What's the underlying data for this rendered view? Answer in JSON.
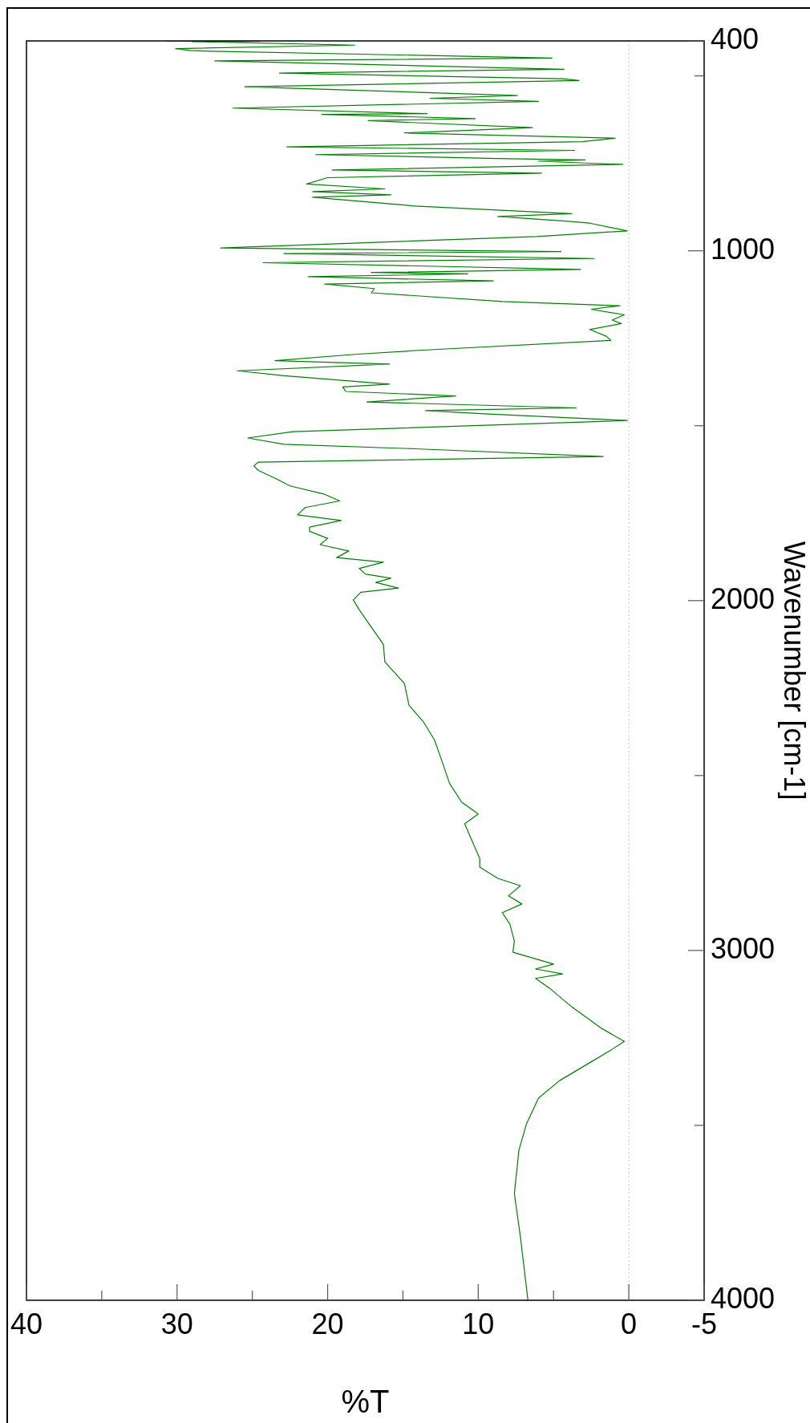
{
  "chart_data": {
    "type": "line",
    "xlabel": "%T",
    "ylabel": "Wavenumber [cm-1]",
    "color": "#008000",
    "xlim": [
      40,
      -5
    ],
    "ylim": [
      4000,
      400
    ],
    "xticks": [
      40,
      {
        "value": 35,
        "label": null
      },
      30,
      {
        "value": 25,
        "label": null
      },
      20,
      {
        "value": 15,
        "label": null
      },
      10,
      {
        "value": 5,
        "label": null
      },
      0,
      -5
    ],
    "yticks": [
      4000,
      {
        "value": 3500,
        "label": null
      },
      3000,
      {
        "value": 2500,
        "label": null
      },
      2000,
      {
        "value": 1500,
        "label": null
      },
      1000,
      {
        "value": 500,
        "label": null
      },
      400
    ],
    "ref_lines": [
      {
        "axis": "x",
        "value": 0,
        "color": "#c0c0c0",
        "line_style": "dotted"
      }
    ],
    "x": [
      6.7,
      7.2,
      7.6,
      7.3,
      6.8,
      6.0,
      4.6,
      2.6,
      1.2,
      0.3,
      1.8,
      3.8,
      5.2,
      6.2,
      4.4,
      6.2,
      5.0,
      7.7,
      7.6,
      7.9,
      8.4,
      7.1,
      8.0,
      7.2,
      8.7,
      9.9,
      9.9,
      10.4,
      10.9,
      10.0,
      11.1,
      11.9,
      12.5,
      12.9,
      13.6,
      14.6,
      14.9,
      16.2,
      16.3,
      17.1,
      17.9,
      18.3,
      17.8,
      15.3,
      16.8,
      15.8,
      17.5,
      17.9,
      16.3,
      19.4,
      18.6,
      20.5,
      20.0,
      21.2,
      21.2,
      19.1,
      22.0,
      21.5,
      19.2,
      20.2,
      22.5,
      23.4,
      24.6,
      24.9,
      24.6,
      1.7,
      14.2,
      22.9,
      25.3,
      22.3,
      0.1,
      9.6,
      13.5,
      3.5,
      17.4,
      11.5,
      18.8,
      19.0,
      15.9,
      22.9,
      26.0,
      15.9,
      23.5,
      18.2,
      13.7,
      1.2,
      1.5,
      2.6,
      0.5,
      1.1,
      0.3,
      2.5,
      0.6,
      8.4,
      17.1,
      16.9,
      20.2,
      9.0,
      21.3,
      10.7,
      17.1,
      3.2,
      24.3,
      2.3,
      22.9,
      4.5,
      27.1,
      6.1,
      0.1,
      2.6,
      4.2,
      8.7,
      3.8,
      14.2,
      21.0,
      15.8,
      21.0,
      16.2,
      21.4,
      20.0,
      5.8,
      19.7,
      0.4,
      6.0,
      2.9,
      8.7,
      20.8,
      3.6,
      22.7,
      3.1,
      0.9,
      14.9,
      6.4,
      17.3,
      10.2,
      20.4,
      13.4,
      26.3,
      6.0,
      13.2,
      7.4,
      25.5,
      3.3,
      4.4,
      23.2,
      4.3,
      27.5,
      5.1,
      29.1,
      30.1,
      18.2,
      29.0,
      24.5,
      30.8
    ],
    "values": [
      4000,
      3819,
      3695,
      3571,
      3496,
      3422,
      3372,
      3321,
      3285,
      3260,
      3223,
      3161,
      3110,
      3080,
      3067,
      3053,
      3039,
      3005,
      2973,
      2925,
      2892,
      2867,
      2844,
      2815,
      2794,
      2762,
      2737,
      2688,
      2638,
      2610,
      2576,
      2523,
      2448,
      2399,
      2349,
      2299,
      2237,
      2175,
      2125,
      2076,
      2026,
      1998,
      1976,
      1964,
      1948,
      1936,
      1924,
      1908,
      1890,
      1877,
      1858,
      1840,
      1822,
      1802,
      1790,
      1771,
      1755,
      1734,
      1715,
      1696,
      1672,
      1652,
      1628,
      1615,
      1604,
      1588,
      1566,
      1553,
      1535,
      1517,
      1485,
      1466,
      1457,
      1449,
      1432,
      1415,
      1402,
      1389,
      1381,
      1357,
      1343,
      1324,
      1314,
      1296,
      1284,
      1256,
      1244,
      1225,
      1208,
      1198,
      1183,
      1167,
      1157,
      1145,
      1120,
      1108,
      1095,
      1086,
      1074,
      1066,
      1062,
      1053,
      1034,
      1022,
      1008,
      1002,
      992,
      959,
      943,
      921,
      915,
      902,
      894,
      872,
      847,
      840,
      831,
      823,
      809,
      791,
      778,
      769,
      753,
      744,
      740,
      736,
      725,
      713,
      703,
      688,
      678,
      663,
      648,
      628,
      622,
      610,
      608,
      592,
      573,
      564,
      556,
      531,
      513,
      508,
      492,
      481,
      457,
      449,
      428,
      422,
      412,
      402,
      401,
      400
    ]
  }
}
